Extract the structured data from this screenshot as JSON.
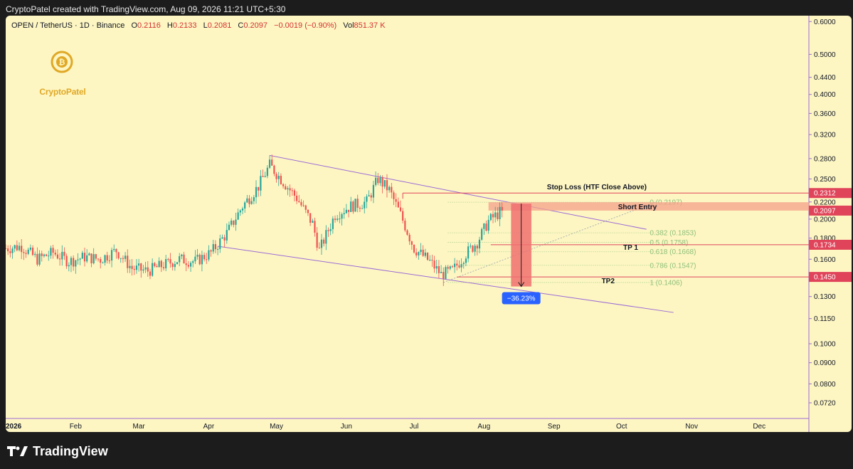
{
  "header": {
    "credit": "CryptoPatel created with TradingView.com, Aug 09, 2026 11:21 UTC+5:30"
  },
  "legend": {
    "symbol": "OPEN / TetherUS · 1D · Binance",
    "o_label": "O",
    "o": "0.2116",
    "h_label": "H",
    "h": "0.2133",
    "l_label": "L",
    "l": "0.2081",
    "c_label": "C",
    "c": "0.2097",
    "change": "−0.0019 (−0.90%)",
    "vol_label": "Vol",
    "vol": "851.37 K"
  },
  "logo": {
    "text": "CryptoPatel",
    "icon": "bitcoin-coin-icon"
  },
  "brand": {
    "text": "TradingView",
    "icon": "tradingview-logo-icon"
  },
  "colors": {
    "background": "#fdf6c3",
    "up": "#26a69a",
    "down": "#ef5350",
    "channel": "#9c6bd6",
    "level": "#e0445a",
    "fib": "#8fbf7a",
    "badge": "#2962ff"
  },
  "chart_data": {
    "type": "candlestick",
    "scale": "log",
    "ylim": [
      0.066,
      0.62
    ],
    "x_range": [
      "2026-01-01",
      "2026-12-23"
    ],
    "x_ticks": [
      {
        "label": "2026",
        "date": "2026-01-01"
      },
      {
        "label": "Feb",
        "date": "2026-02-01"
      },
      {
        "label": "Mar",
        "date": "2026-03-01"
      },
      {
        "label": "Apr",
        "date": "2026-04-01"
      },
      {
        "label": "May",
        "date": "2026-05-01"
      },
      {
        "label": "Jun",
        "date": "2026-06-01"
      },
      {
        "label": "Jul",
        "date": "2026-07-01"
      },
      {
        "label": "Aug",
        "date": "2026-08-01"
      },
      {
        "label": "Sep",
        "date": "2026-09-01"
      },
      {
        "label": "Oct",
        "date": "2026-10-01"
      },
      {
        "label": "Nov",
        "date": "2026-11-01"
      },
      {
        "label": "Dec",
        "date": "2026-12-01"
      }
    ],
    "y_ticks": [
      "0.6000",
      "0.5000",
      "0.4400",
      "0.4000",
      "0.3600",
      "0.3200",
      "0.2800",
      "0.2500",
      "0.2200",
      "0.2000",
      "0.1800",
      "0.1600",
      "0.1450",
      "0.1300",
      "0.1150",
      "0.1000",
      "0.0900",
      "0.0800",
      "0.0720"
    ],
    "price_path": [
      {
        "date": "2026-01-01",
        "price": 0.17
      },
      {
        "date": "2026-01-08",
        "price": 0.172
      },
      {
        "date": "2026-01-15",
        "price": 0.16
      },
      {
        "date": "2026-01-22",
        "price": 0.166
      },
      {
        "date": "2026-01-29",
        "price": 0.158
      },
      {
        "date": "2026-02-05",
        "price": 0.162
      },
      {
        "date": "2026-02-12",
        "price": 0.16
      },
      {
        "date": "2026-02-19",
        "price": 0.168
      },
      {
        "date": "2026-02-26",
        "price": 0.152
      },
      {
        "date": "2026-03-05",
        "price": 0.15
      },
      {
        "date": "2026-03-12",
        "price": 0.155
      },
      {
        "date": "2026-03-19",
        "price": 0.16
      },
      {
        "date": "2026-03-26",
        "price": 0.158
      },
      {
        "date": "2026-04-02",
        "price": 0.166
      },
      {
        "date": "2026-04-09",
        "price": 0.185
      },
      {
        "date": "2026-04-16",
        "price": 0.215
      },
      {
        "date": "2026-04-23",
        "price": 0.24
      },
      {
        "date": "2026-04-28",
        "price": 0.27
      },
      {
        "date": "2026-05-03",
        "price": 0.25
      },
      {
        "date": "2026-05-10",
        "price": 0.225
      },
      {
        "date": "2026-05-17",
        "price": 0.195
      },
      {
        "date": "2026-05-20",
        "price": 0.168
      },
      {
        "date": "2026-05-27",
        "price": 0.205
      },
      {
        "date": "2026-06-03",
        "price": 0.215
      },
      {
        "date": "2026-06-10",
        "price": 0.22
      },
      {
        "date": "2026-06-15",
        "price": 0.25
      },
      {
        "date": "2026-06-20",
        "price": 0.235
      },
      {
        "date": "2026-06-25",
        "price": 0.205
      },
      {
        "date": "2026-07-01",
        "price": 0.17
      },
      {
        "date": "2026-07-08",
        "price": 0.158
      },
      {
        "date": "2026-07-13",
        "price": 0.147
      },
      {
        "date": "2026-07-18",
        "price": 0.15
      },
      {
        "date": "2026-07-24",
        "price": 0.165
      },
      {
        "date": "2026-07-29",
        "price": 0.176
      },
      {
        "date": "2026-08-03",
        "price": 0.198
      },
      {
        "date": "2026-08-09",
        "price": 0.2097
      }
    ],
    "channel": {
      "upper": [
        {
          "date": "2026-04-28",
          "price": 0.285
        },
        {
          "date": "2026-10-12",
          "price": 0.189
        }
      ],
      "lower": [
        {
          "date": "2026-04-05",
          "price": 0.172
        },
        {
          "date": "2026-10-24",
          "price": 0.119
        }
      ]
    },
    "fib": {
      "from": "2026-07-16",
      "to": "2026-10-16",
      "levels": [
        {
          "label": "0 (0.2197)",
          "price": 0.2197
        },
        {
          "label": "0.382 (0.1853)",
          "price": 0.1853
        },
        {
          "label": "0.5 (0.1758)",
          "price": 0.1758
        },
        {
          "label": "0.618 (0.1668)",
          "price": 0.1668
        },
        {
          "label": "0.786 (0.1547)",
          "price": 0.1547
        },
        {
          "label": "1 (0.1406)",
          "price": 0.1406
        }
      ]
    },
    "levels": [
      {
        "name": "stop-loss",
        "label": "Stop Loss (HTF Close Above)",
        "price": 0.2312,
        "tag": "0.2312",
        "from": "2026-06-26"
      },
      {
        "name": "tp1",
        "label": "TP 1",
        "price": 0.1734,
        "tag": "0.1734",
        "from": "2026-08-04"
      },
      {
        "name": "tp2",
        "label": "TP2",
        "price": 0.145,
        "tag": "0.1450",
        "from": "2026-07-20"
      }
    ],
    "short_entry": {
      "label": "Short Entry",
      "low": 0.2097,
      "high": 0.2197,
      "from": "2026-08-03",
      "tag": "0.2097"
    },
    "projection": {
      "from": "2026-08-13",
      "to": "2026-08-22",
      "top": 0.218,
      "bottom": 0.1375,
      "badge": "−36.23%"
    }
  }
}
